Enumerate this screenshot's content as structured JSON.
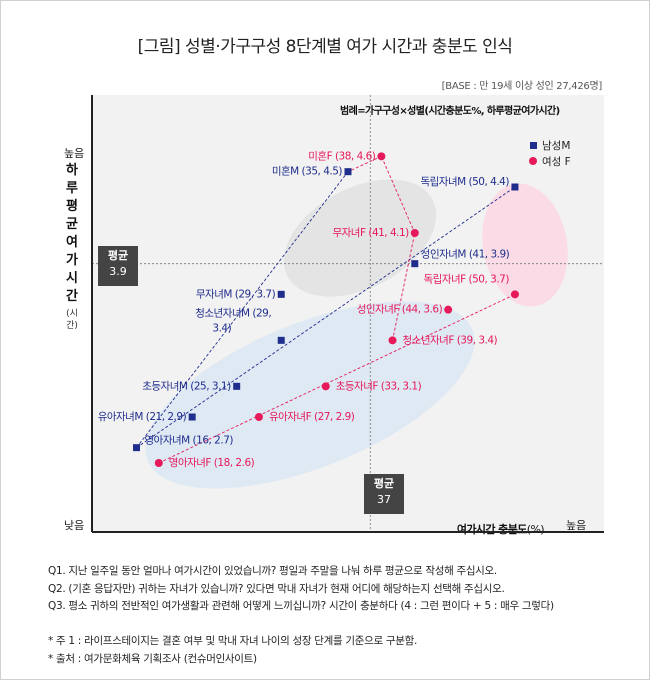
{
  "title": "[그림] 성별·가구구성 8단계별 여가 시간과 충분도 인식",
  "base": "[BASE : 만 19세 이상 성인  27,426명]",
  "legend_head": "범례=가구구성×성별(시간충분도%, 하루평균여가시간)",
  "colors": {
    "male": "#1f2d8c",
    "female": "#e6195a",
    "avg_box": "#444444",
    "plot_bg": "#f2f2f2"
  },
  "axes": {
    "ylabel_chars": [
      "하",
      "루",
      "평",
      "균",
      "여",
      "가",
      "시",
      "간"
    ],
    "ylabel_unit": "(시간)",
    "y_high": "높음",
    "y_low": "낮음",
    "xlabel": "여가시간 충분도",
    "xlabel_unit": "(%)",
    "x_high": "높음"
  },
  "averages": {
    "y_label": "평균",
    "y_value": "3.9",
    "x_label": "평균",
    "x_value": "37"
  },
  "legend": {
    "male": "남성M",
    "female": "여성 F"
  },
  "chart_data": {
    "type": "scatter",
    "xlabel": "여가시간 충분도(%)",
    "ylabel": "하루 평균 여가 시간(시간)",
    "xlim": [
      12,
      58
    ],
    "ylim": [
      2.15,
      5.0
    ],
    "avg_x": 37,
    "avg_y": 3.9,
    "series": [
      {
        "name": "남성M",
        "points": [
          {
            "label": "영아자녀M (16, 2.7)",
            "x": 16,
            "y": 2.7
          },
          {
            "label": "유아자녀M (21, 2.9)",
            "x": 21,
            "y": 2.9
          },
          {
            "label": "초등자녀M (25, 3.1)",
            "x": 25,
            "y": 3.1
          },
          {
            "label": "청소년자녀M (29, 3.4)",
            "x": 29,
            "y": 3.4
          },
          {
            "label": "무자녀M (29, 3.7)",
            "x": 29,
            "y": 3.7
          },
          {
            "label": "미혼M (35, 4.5)",
            "x": 35,
            "y": 4.5
          },
          {
            "label": "성인자녀M (41, 3.9)",
            "x": 41,
            "y": 3.9
          },
          {
            "label": "독립자녀M (50, 4.4)",
            "x": 50,
            "y": 4.4
          }
        ]
      },
      {
        "name": "여성 F",
        "points": [
          {
            "label": "영아자녀F (18, 2.6)",
            "x": 18,
            "y": 2.6
          },
          {
            "label": "유아자녀F (27, 2.9)",
            "x": 27,
            "y": 2.9
          },
          {
            "label": "초등자녀F (33, 3.1)",
            "x": 33,
            "y": 3.1
          },
          {
            "label": "청소년자녀F (39, 3.4)",
            "x": 39,
            "y": 3.4
          },
          {
            "label": "성인자녀F (44, 3.6)",
            "x": 44,
            "y": 3.6
          },
          {
            "label": "독립자녀F (50, 3.7)",
            "x": 50,
            "y": 3.7
          },
          {
            "label": "무자녀F (41, 4.1)",
            "x": 41,
            "y": 4.1
          },
          {
            "label": "미혼F (38, 4.6)",
            "x": 38,
            "y": 4.6
          }
        ]
      }
    ],
    "lines": [
      {
        "series": "남성M",
        "from": "영아자녀M",
        "to": "미혼M"
      },
      {
        "series": "남성M",
        "from": "영아자녀M",
        "to": "독립자녀M"
      },
      {
        "series": "여성 F",
        "from": "영아자녀F",
        "to": "독립자녀F"
      },
      {
        "series": "여성 F",
        "from": "청소년자녀F",
        "to": "무자녀F"
      },
      {
        "series": "여성 F",
        "from": "무자녀F",
        "to": "미혼F"
      },
      {
        "series": "mixed",
        "from": "미혼F",
        "to": "미혼M"
      }
    ]
  },
  "questions": [
    "Q1. 지난 일주일 동안 얼마나 여가시간이 있었습니까? 평일과 주말을 나눠 하루 평균으로 작성해 주십시오.",
    "Q2. (기혼 응답자만) 귀하는 자녀가 있습니까? 있다면 막내 자녀가 현재 어디에 해당하는지 선택해 주십시오.",
    "Q3. 평소 귀하의 전반적인 여가생활과 관련해 어떻게 느끼십니까? 시간이 충분하다 (4 : 그런 편이다 + 5 : 매우 그렇다)"
  ],
  "footnotes": [
    "* 주 1 : 라이프스테이지는 결혼 여부 및 막내 자녀 나이의 성장 단계를 기준으로 구분함.",
    "* 출처 : 여가문화체육 기획조사 (컨슈머인사이트)"
  ]
}
